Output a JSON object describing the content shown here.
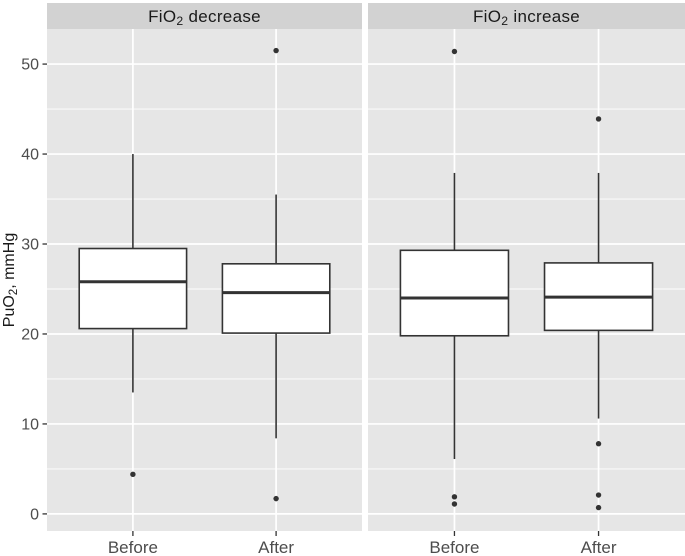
{
  "colors": {
    "background": "#FFFFFF",
    "panel_bg": "#E6E6E6",
    "strip_bg": "#D2D2D2",
    "grid": "#FFFFFF",
    "box_fill": "#FFFFFF",
    "box_stroke": "#333333",
    "outlier": "#333333",
    "tick_stroke": "#333333",
    "axis_text": "#4D4D4D",
    "title_text": "#1A1A1A"
  },
  "chart_data": {
    "type": "boxplot",
    "title": "",
    "ylabel": "PuO2, mmHg",
    "ylabel_parts": [
      {
        "t": "PuO"
      },
      {
        "t": "2",
        "sub": true
      },
      {
        "t": ", mmHg"
      }
    ],
    "xlabel": "",
    "y_ticks": [
      0,
      10,
      20,
      30,
      40,
      50
    ],
    "y_minor_ticks": [
      5,
      15,
      25,
      35,
      45
    ],
    "ylim": [
      -1.9,
      53.9
    ],
    "grid": "on",
    "legend": "none",
    "categories": [
      "Before",
      "After"
    ],
    "facets": [
      {
        "label": "FiO2 decrease",
        "label_parts": [
          {
            "t": "FiO"
          },
          {
            "t": "2",
            "sub": true
          },
          {
            "t": " decrease"
          }
        ],
        "boxes": [
          {
            "category": "Before",
            "whisker_low": 13.5,
            "q1": 20.6,
            "median": 25.8,
            "q3": 29.5,
            "whisker_high": 40.0,
            "outliers": [
              4.4
            ]
          },
          {
            "category": "After",
            "whisker_low": 8.4,
            "q1": 20.1,
            "median": 24.6,
            "q3": 27.8,
            "whisker_high": 35.5,
            "outliers": [
              51.5,
              1.7
            ]
          }
        ]
      },
      {
        "label": "FiO2 increase",
        "label_parts": [
          {
            "t": "FiO"
          },
          {
            "t": "2",
            "sub": true
          },
          {
            "t": " increase"
          }
        ],
        "boxes": [
          {
            "category": "Before",
            "whisker_low": 6.1,
            "q1": 19.8,
            "median": 24.0,
            "q3": 29.3,
            "whisker_high": 37.9,
            "outliers": [
              51.4,
              1.9,
              1.1
            ]
          },
          {
            "category": "After",
            "whisker_low": 10.6,
            "q1": 20.4,
            "median": 24.1,
            "q3": 27.9,
            "whisker_high": 37.9,
            "outliers": [
              43.9,
              7.8,
              2.1,
              0.7
            ]
          }
        ]
      }
    ]
  }
}
